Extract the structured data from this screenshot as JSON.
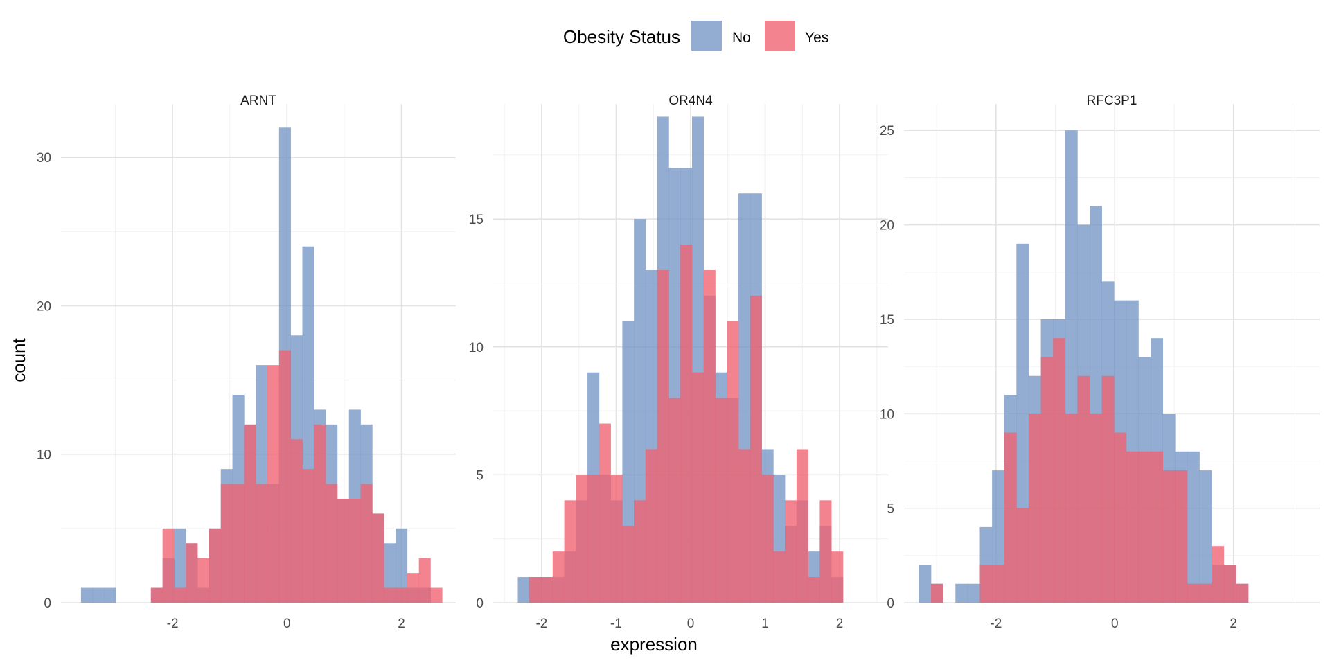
{
  "colors": {
    "no": "#7395C5",
    "yes": "#F0616F",
    "grid_major": "#E3E3E3",
    "grid_minor": "#F1F1F1"
  },
  "legend": {
    "title": "Obesity Status",
    "items": [
      {
        "key": "no",
        "label": "No"
      },
      {
        "key": "yes",
        "label": "Yes"
      }
    ]
  },
  "chart_data": {
    "type": "histogram",
    "xlabel": "expression",
    "ylabel": "count",
    "legend_placement": "top",
    "grid": true,
    "opacity": 0.78,
    "panels": [
      {
        "title": "ARNT",
        "xlim": [
          -3.95,
          2.95
        ],
        "ylim": [
          0,
          33.6
        ],
        "x_ticks": [
          -2,
          0,
          2
        ],
        "x_tick_labels": [
          "-2",
          "0",
          "2"
        ],
        "y_ticks": [
          0,
          10,
          20,
          30
        ],
        "y_tick_labels": [
          "0",
          "10",
          "20",
          "30"
        ],
        "bin_start": -3.6,
        "bin_width": 0.2036,
        "series": [
          {
            "key": "no",
            "values": [
              1,
              1,
              1,
              0,
              0,
              0,
              1,
              3,
              5,
              4,
              1,
              5,
              9,
              14,
              12,
              16,
              8,
              32,
              18,
              24,
              13,
              12,
              7,
              13,
              12,
              6,
              4,
              5,
              1,
              1,
              0
            ]
          },
          {
            "key": "yes",
            "values": [
              0,
              0,
              0,
              0,
              0,
              0,
              1,
              5,
              1,
              4,
              3,
              5,
              8,
              8,
              12,
              8,
              16,
              17,
              11,
              9,
              12,
              8,
              7,
              7,
              8,
              6,
              1,
              1,
              2,
              3,
              1
            ]
          }
        ]
      },
      {
        "title": "OR4N4",
        "xlim": [
          -2.65,
          2.65
        ],
        "ylim": [
          0,
          19.5
        ],
        "x_ticks": [
          -2,
          -1,
          0,
          1,
          2
        ],
        "x_tick_labels": [
          "-2",
          "-1",
          "0",
          "1",
          "2"
        ],
        "y_ticks": [
          0,
          5,
          10,
          15
        ],
        "y_tick_labels": [
          "0",
          "5",
          "10",
          "15"
        ],
        "bin_start": -2.32,
        "bin_width": 0.1559,
        "series": [
          {
            "key": "no",
            "values": [
              1,
              1,
              1,
              1,
              2,
              4,
              9,
              5,
              4,
              11,
              15,
              13,
              19,
              17,
              17,
              19,
              12,
              9,
              8,
              16,
              16,
              6,
              5,
              3,
              4,
              2,
              3,
              1
            ]
          },
          {
            "key": "yes",
            "values": [
              0,
              1,
              1,
              2,
              4,
              5,
              5,
              7,
              5,
              3,
              4,
              6,
              13,
              8,
              14,
              9,
              13,
              8,
              11,
              6,
              12,
              5,
              2,
              4,
              6,
              1,
              4,
              2
            ]
          }
        ]
      },
      {
        "title": "RFC3P1",
        "xlim": [
          -3.55,
          3.45
        ],
        "ylim": [
          0,
          26.4
        ],
        "x_ticks": [
          -2,
          0,
          2
        ],
        "x_tick_labels": [
          "-2",
          "0",
          "2"
        ],
        "y_ticks": [
          0,
          5,
          10,
          15,
          20,
          25
        ],
        "y_tick_labels": [
          "0",
          "5",
          "10",
          "15",
          "20",
          "25"
        ],
        "bin_start": -3.3,
        "bin_width": 0.2055,
        "series": [
          {
            "key": "no",
            "values": [
              2,
              1,
              0,
              1,
              1,
              4,
              7,
              11,
              19,
              12,
              15,
              15,
              25,
              20,
              21,
              17,
              16,
              16,
              13,
              14,
              10,
              8,
              8,
              7,
              2,
              2,
              1
            ]
          },
          {
            "key": "yes",
            "values": [
              0,
              1,
              0,
              0,
              0,
              2,
              2,
              9,
              5,
              10,
              13,
              14,
              10,
              12,
              10,
              12,
              9,
              8,
              8,
              8,
              7,
              7,
              1,
              1,
              3,
              2,
              1
            ]
          }
        ]
      }
    ]
  }
}
